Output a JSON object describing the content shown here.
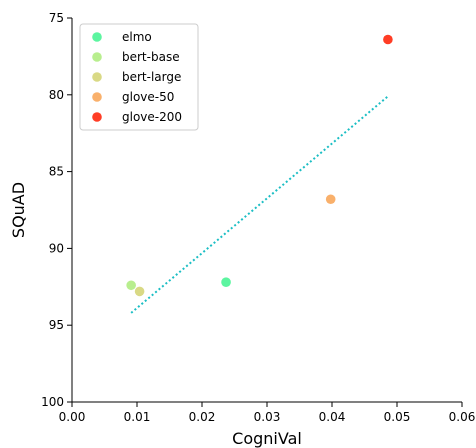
{
  "chart_data": {
    "type": "scatter",
    "xlabel": "CogniVal",
    "ylabel": "SQuAD",
    "xlim": [
      0.0,
      0.06
    ],
    "ylim": [
      100,
      75
    ],
    "y_inverted": true,
    "grid": false,
    "legend_position": "top-left",
    "x_ticks": [
      "0.00",
      "0.01",
      "0.02",
      "0.03",
      "0.04",
      "0.05",
      "0.06"
    ],
    "x_tick_values": [
      0.0,
      0.01,
      0.02,
      0.03,
      0.04,
      0.05,
      0.06
    ],
    "y_ticks": [
      "75",
      "80",
      "85",
      "90",
      "95",
      "100"
    ],
    "y_tick_values": [
      75,
      80,
      85,
      90,
      95,
      100
    ],
    "series": [
      {
        "name": "elmo",
        "color": "#5cf5a0",
        "points": [
          {
            "x": 0.0237,
            "y": 92.2
          }
        ]
      },
      {
        "name": "bert-base",
        "color": "#b8ee8e",
        "points": [
          {
            "x": 0.0091,
            "y": 92.4
          }
        ]
      },
      {
        "name": "bert-large",
        "color": "#d9d985",
        "points": [
          {
            "x": 0.0104,
            "y": 92.8
          }
        ]
      },
      {
        "name": "glove-50",
        "color": "#f9b06b",
        "points": [
          {
            "x": 0.0398,
            "y": 86.8
          }
        ]
      },
      {
        "name": "glove-200",
        "color": "#ff3d25",
        "points": [
          {
            "x": 0.0486,
            "y": 76.4
          }
        ]
      }
    ],
    "trendline": {
      "color": "#1bbec4",
      "style": "dotted",
      "x": [
        0.0091,
        0.0486
      ],
      "y": [
        94.2,
        80.1
      ]
    }
  }
}
